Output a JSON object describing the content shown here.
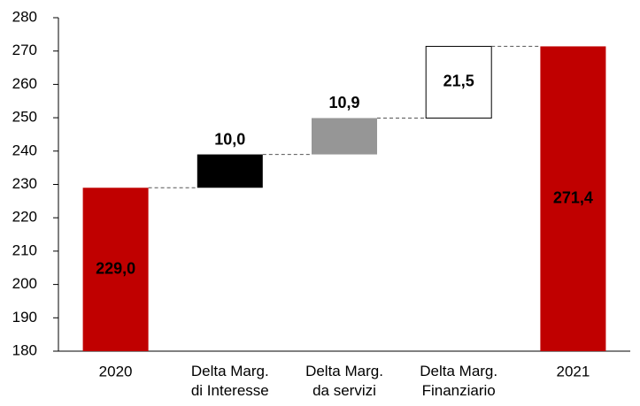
{
  "chart_data": {
    "type": "waterfall",
    "categories": [
      "2020",
      "Delta Marg.\ndi Interesse",
      "Delta Marg.\nda servizi",
      "Delta Marg.\nFinanziario",
      "2021"
    ],
    "values": [
      229.0,
      10.0,
      10.9,
      21.5,
      271.4
    ],
    "value_labels": [
      "229,0",
      "10,0",
      "10,9",
      "21,5",
      "271,4"
    ],
    "totals": [
      true,
      false,
      false,
      false,
      true
    ],
    "colors": [
      "#c00000",
      "#000000",
      "#969696",
      "#ffffff",
      "#c00000"
    ],
    "ylim": [
      180,
      280
    ],
    "yticks": [
      180,
      190,
      200,
      210,
      220,
      230,
      240,
      250,
      260,
      270,
      280
    ]
  }
}
